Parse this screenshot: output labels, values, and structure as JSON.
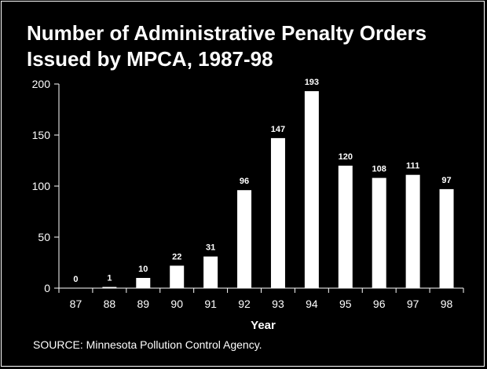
{
  "title_line1": "Number of Administrative Penalty Orders",
  "title_line2": "Issued by MPCA, 1987-98",
  "source": "SOURCE:  Minnesota Pollution Control Agency.",
  "colors": {
    "background": "#000000",
    "foreground": "#ffffff",
    "bar": "#ffffff"
  },
  "chart_data": {
    "type": "bar",
    "title": "Number of Administrative Penalty Orders Issued by MPCA, 1987-98",
    "xlabel": "Year",
    "ylabel": "",
    "categories": [
      "87",
      "88",
      "89",
      "90",
      "91",
      "92",
      "93",
      "94",
      "95",
      "96",
      "97",
      "98"
    ],
    "values": [
      0,
      1,
      10,
      22,
      31,
      96,
      147,
      193,
      120,
      108,
      111,
      97
    ],
    "ylim": [
      0,
      200
    ],
    "yticks": [
      0,
      50,
      100,
      150,
      200
    ],
    "grid": false,
    "legend": "none"
  }
}
